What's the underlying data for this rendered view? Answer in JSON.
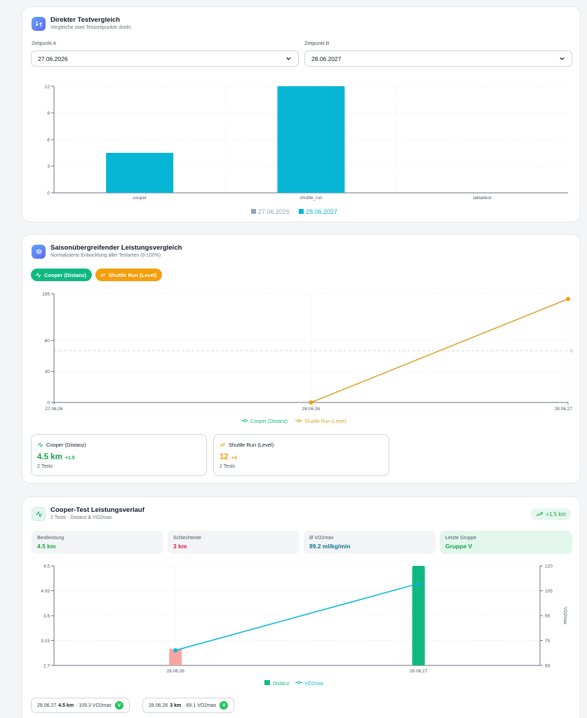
{
  "card1": {
    "title": "Direkter Testvergleich",
    "subtitle": "Vergleiche zwei Testzeitpunkte direkt",
    "label_a": "Zeitpunkt A",
    "label_b": "Zeitpunkt B",
    "value_a": "27.06.2026",
    "value_b": "28.06.2027"
  },
  "card2": {
    "title": "Saisonübergreifender Leistungsvergleich",
    "subtitle": "Normalisierte Entwicklung aller Testarten (0-100%)",
    "pills": [
      "Cooper (Distanz)",
      "Shuttle Run (Level)"
    ],
    "summaries": [
      {
        "name": "Cooper (Distanz)",
        "value": "4.5 km",
        "delta": "+1.5",
        "count": "2 Tests",
        "color": "#16a34a"
      },
      {
        "name": "Shuttle Run (Level)",
        "value": "12",
        "delta": "+4",
        "count": "2 Tests",
        "color": "#f59e0b"
      }
    ]
  },
  "card3": {
    "title": "Cooper-Test Leistungsverlauf",
    "subtitle": "2 Tests · Distanz & VO2max",
    "trend_badge": "+1.5 km",
    "stats": [
      {
        "label": "Bestleistung",
        "value": "4.5 km",
        "color": "#16a34a"
      },
      {
        "label": "Schlechteste",
        "value": "3 km",
        "color": "#e11d48"
      },
      {
        "label": "Ø VO2max",
        "value": "89.2 ml/kg/min",
        "color": "#0e7490"
      },
      {
        "label": "Letzte Gruppe",
        "value": "Gruppe V",
        "color": "#16a34a"
      }
    ],
    "chips": [
      {
        "date": "28.06.27",
        "km": "4.5 km",
        "vo2": "· 109.3 VO2max",
        "mark": "V"
      },
      {
        "date": "28.06.26",
        "km": "3 km",
        "vo2": "· 69.1 VO2max",
        "mark": "V"
      }
    ]
  },
  "colors": {
    "teal": "#06b6d4",
    "green": "#10b981",
    "orange": "#f59e0b",
    "salmon": "#f8a5a5",
    "gray": "#94a3b8"
  },
  "chart_data": [
    {
      "type": "bar",
      "categories": [
        "cooper",
        "shuttle_run",
        "laktattest"
      ],
      "series": [
        {
          "name": "27.06.2026",
          "values": [
            0,
            0,
            0
          ]
        },
        {
          "name": "28.06.2027",
          "values": [
            4.5,
            12,
            0
          ]
        }
      ],
      "yticks": [
        "0",
        "3",
        "6",
        "9",
        "12"
      ],
      "ylim": [
        0,
        12
      ],
      "legend": "bottom"
    },
    {
      "type": "line",
      "x": [
        "27.06.26",
        "28.06.26",
        "28.06.27"
      ],
      "series": [
        {
          "name": "Cooper (Distanz)",
          "values": [
            null,
            null,
            null
          ]
        },
        {
          "name": "Shuttle Run (Level)",
          "values": [
            null,
            0,
            100
          ]
        }
      ],
      "yticks": [
        "0",
        "30",
        "60",
        "105"
      ],
      "ylim": [
        0,
        105
      ],
      "reference_line": {
        "value": 50,
        "label": "6"
      },
      "legend": "bottom"
    },
    {
      "type": "bar",
      "categories": [
        "28.06.26",
        "28.06.27"
      ],
      "series": [
        {
          "name": "Distanz",
          "values": [
            3.0,
            4.5
          ],
          "axis": "left"
        },
        {
          "name": "VO2max",
          "values": [
            69.1,
            109.3
          ],
          "axis": "right",
          "type": "line"
        }
      ],
      "yticks_left": [
        "2.7",
        "3.15",
        "3.6",
        "4.05",
        "4.5"
      ],
      "yticks_right": [
        "60",
        "75",
        "90",
        "105",
        "120"
      ],
      "ylim_left": [
        2.7,
        4.5
      ],
      "ylim_right": [
        60,
        120
      ],
      "ylabel_right": "VO2max",
      "legend": "bottom"
    }
  ]
}
